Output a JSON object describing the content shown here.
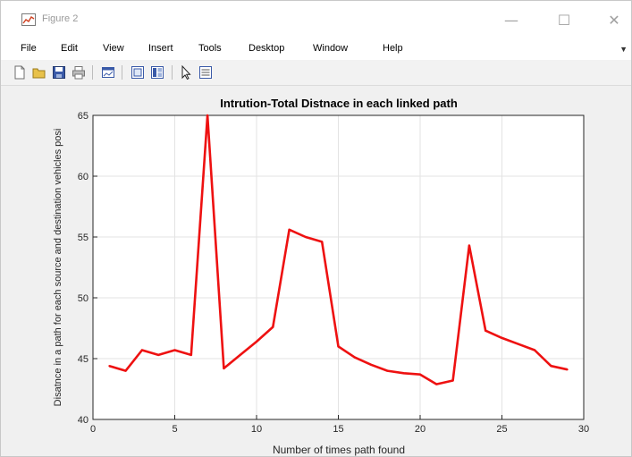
{
  "window": {
    "title": "Figure 2",
    "controls": {
      "minimize": "—",
      "maximize": "☐",
      "close": "✕"
    }
  },
  "menu": [
    "File",
    "Edit",
    "View",
    "Insert",
    "Tools",
    "Desktop",
    "Window",
    "Help"
  ],
  "toolbar": {
    "buttons": [
      "new-figure-icon",
      "open-file-icon",
      "save-icon",
      "print-icon",
      "link-plot-icon",
      "hide-plot-tools-icon",
      "show-plot-tools-icon",
      "edit-plot-icon",
      "insert-legend-icon"
    ]
  },
  "colors": {
    "series_line": "#ee1111",
    "grid": "#e3e3e3",
    "axes": "#262626"
  },
  "chart_data": {
    "type": "line",
    "title": "Intrution-Total Distnace in each linked path",
    "xlabel": "Number of times path found",
    "ylabel": "Disatnce in a path for each source and destination vehicles posi",
    "xlim": [
      0,
      30
    ],
    "ylim": [
      40,
      65
    ],
    "xticks": [
      0,
      5,
      10,
      15,
      20,
      25,
      30
    ],
    "yticks": [
      40,
      45,
      50,
      55,
      60,
      65
    ],
    "grid": true,
    "series": [
      {
        "x": [
          1,
          2,
          3,
          4,
          5,
          6,
          7,
          8,
          9,
          10,
          11,
          12,
          13,
          14,
          15,
          16,
          17,
          18,
          19,
          20,
          21,
          22,
          23,
          24,
          25,
          26,
          27,
          28,
          29
        ],
        "y": [
          44.4,
          44.0,
          45.7,
          45.3,
          45.7,
          45.3,
          65.0,
          44.2,
          45.3,
          46.4,
          47.6,
          55.6,
          55.0,
          54.6,
          46.0,
          45.1,
          44.5,
          44.0,
          43.8,
          43.7,
          42.9,
          43.2,
          54.3,
          47.3,
          46.7,
          46.2,
          45.7,
          44.4,
          44.1
        ]
      }
    ]
  }
}
